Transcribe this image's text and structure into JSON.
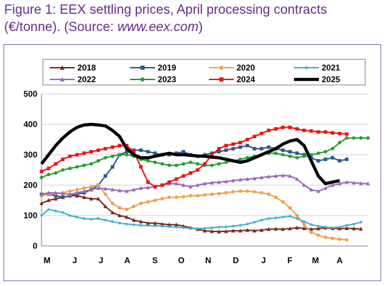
{
  "figure": {
    "title_main": "Figure 1: EEX settling prices, April processing contracts",
    "title_unit": "(€/tonne). (Source: ",
    "title_source": "www.eex.com",
    "title_end": ")"
  },
  "chart_data": {
    "type": "line",
    "title": "Figure 1: EEX settling prices, April processing contracts (€/tonne). (Source: www.eex.com)",
    "xlabel": "",
    "ylabel": "",
    "ylim": [
      0,
      500
    ],
    "y_ticks": [
      "0",
      "100",
      "200",
      "300",
      "400",
      "500"
    ],
    "x_ticks": [
      "M",
      "J",
      "J",
      "A",
      "S",
      "O",
      "N",
      "D",
      "J",
      "F",
      "M",
      "A"
    ],
    "grid": "horizontal",
    "legend_position": "top",
    "x": [
      0,
      0.25,
      0.5,
      0.75,
      1,
      1.25,
      1.5,
      1.75,
      2,
      2.25,
      2.5,
      2.75,
      3,
      3.25,
      3.5,
      3.75,
      4,
      4.25,
      4.5,
      4.75,
      5,
      5.25,
      5.5,
      5.75,
      6,
      6.25,
      6.5,
      6.75,
      7,
      7.25,
      7.5,
      7.75,
      8,
      8.25,
      8.5,
      8.75,
      9,
      9.25,
      9.5,
      9.75,
      10,
      10.25,
      10.5,
      10.75,
      11,
      11.25,
      11.5
    ],
    "series": [
      {
        "name": "2018",
        "color": "#7b2a1a",
        "marker": "triangle",
        "values": [
          140,
          150,
          155,
          160,
          165,
          165,
          160,
          155,
          155,
          130,
          110,
          100,
          95,
          85,
          80,
          75,
          75,
          72,
          70,
          70,
          65,
          60,
          55,
          50,
          48,
          47,
          48,
          50,
          50,
          52,
          50,
          52,
          55,
          56,
          55,
          57,
          60,
          58,
          55,
          57,
          60,
          58,
          57,
          58,
          57,
          56,
          null
        ]
      },
      {
        "name": "2019",
        "color": "#2a5a8c",
        "marker": "square",
        "values": [
          170,
          170,
          165,
          160,
          165,
          170,
          175,
          185,
          200,
          230,
          260,
          300,
          310,
          315,
          315,
          310,
          305,
          300,
          300,
          305,
          310,
          300,
          295,
          300,
          305,
          310,
          315,
          320,
          325,
          330,
          320,
          320,
          325,
          320,
          315,
          310,
          305,
          300,
          290,
          280,
          285,
          290,
          280,
          285,
          null,
          null,
          null
        ]
      },
      {
        "name": "2020",
        "color": "#f0a050",
        "marker": "circle",
        "values": [
          165,
          170,
          172,
          175,
          180,
          185,
          190,
          195,
          200,
          170,
          140,
          125,
          120,
          130,
          140,
          145,
          150,
          155,
          160,
          160,
          162,
          165,
          165,
          168,
          170,
          172,
          175,
          178,
          180,
          180,
          178,
          175,
          170,
          160,
          145,
          125,
          100,
          70,
          45,
          35,
          28,
          25,
          22,
          20,
          null,
          null,
          null
        ]
      },
      {
        "name": "2021",
        "color": "#40b0d0",
        "marker": "star",
        "values": [
          100,
          120,
          115,
          110,
          100,
          95,
          90,
          88,
          90,
          85,
          80,
          75,
          72,
          70,
          68,
          67,
          66,
          65,
          63,
          62,
          60,
          58,
          57,
          58,
          60,
          62,
          63,
          65,
          68,
          72,
          78,
          85,
          90,
          92,
          95,
          98,
          90,
          80,
          70,
          65,
          62,
          60,
          62,
          68,
          72,
          78,
          null
        ]
      },
      {
        "name": "2022",
        "color": "#9a6ac0",
        "marker": "triangle",
        "values": [
          170,
          175,
          175,
          172,
          170,
          175,
          180,
          185,
          190,
          188,
          185,
          182,
          180,
          185,
          190,
          192,
          195,
          200,
          205,
          205,
          200,
          195,
          200,
          205,
          208,
          210,
          212,
          215,
          218,
          220,
          222,
          225,
          228,
          230,
          232,
          230,
          220,
          200,
          185,
          180,
          190,
          200,
          205,
          210,
          208,
          206,
          205
        ]
      },
      {
        "name": "2023",
        "color": "#20a030",
        "marker": "circle",
        "values": [
          225,
          235,
          240,
          250,
          255,
          260,
          265,
          270,
          280,
          290,
          295,
          300,
          300,
          295,
          285,
          280,
          275,
          270,
          265,
          265,
          270,
          275,
          270,
          265,
          265,
          270,
          275,
          280,
          285,
          290,
          295,
          300,
          305,
          305,
          300,
          295,
          290,
          295,
          300,
          305,
          310,
          320,
          340,
          355,
          355,
          355,
          355
        ]
      },
      {
        "name": "2024",
        "color": "#ee1111",
        "marker": "square",
        "values": [
          245,
          255,
          270,
          285,
          295,
          300,
          305,
          310,
          315,
          320,
          325,
          330,
          330,
          310,
          260,
          210,
          195,
          200,
          210,
          220,
          230,
          240,
          250,
          270,
          300,
          320,
          330,
          335,
          340,
          350,
          360,
          370,
          380,
          385,
          390,
          390,
          385,
          380,
          378,
          375,
          375,
          372,
          370,
          368,
          null,
          null,
          null
        ]
      },
      {
        "name": "2025",
        "color": "#000000",
        "marker": "none",
        "values": [
          270,
          300,
          330,
          355,
          375,
          390,
          398,
          400,
          398,
          395,
          380,
          360,
          320,
          300,
          290,
          290,
          295,
          300,
          305,
          300,
          300,
          298,
          296,
          295,
          292,
          290,
          285,
          280,
          275,
          280,
          290,
          300,
          310,
          320,
          335,
          345,
          350,
          330,
          280,
          230,
          205,
          210,
          215,
          null,
          null,
          null,
          null
        ]
      }
    ]
  }
}
